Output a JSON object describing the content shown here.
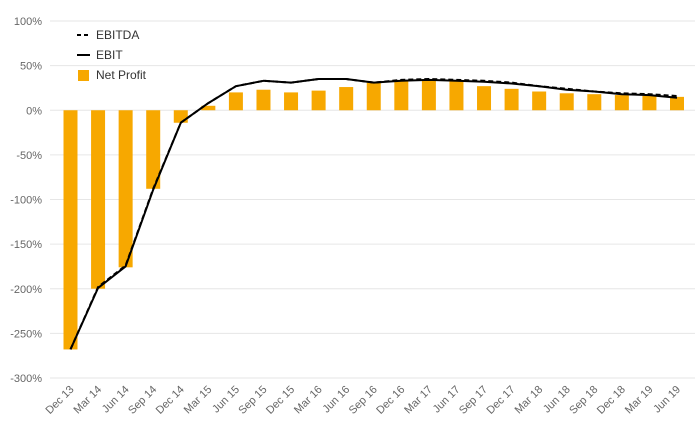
{
  "chart_data": {
    "type": "bar",
    "categories": [
      "Dec 13",
      "Mar 14",
      "Jun 14",
      "Sep 14",
      "Dec 14",
      "Mar 15",
      "Jun 15",
      "Sep 15",
      "Dec 15",
      "Mar 16",
      "Jun 16",
      "Sep 16",
      "Dec 16",
      "Mar 17",
      "Jun 17",
      "Sep 17",
      "Dec 17",
      "Mar 18",
      "Jun 18",
      "Sep 18",
      "Dec 18",
      "Mar 19",
      "Jun 19"
    ],
    "series": [
      {
        "name": "EBITDA",
        "type": "line",
        "style": "dashed",
        "color": "#000000",
        "values": [
          -268,
          -198,
          -174,
          -88,
          -14,
          8,
          27,
          33,
          31,
          35,
          35,
          31,
          34,
          35,
          34,
          33,
          31,
          27,
          24,
          21,
          19,
          18,
          16
        ]
      },
      {
        "name": "EBIT",
        "type": "line",
        "style": "solid",
        "color": "#000000",
        "values": [
          -268,
          -199,
          -175,
          -89,
          -14,
          8,
          27,
          33,
          31,
          35,
          35,
          31,
          33,
          34,
          33,
          32,
          30,
          27,
          23,
          21,
          18,
          17,
          14
        ]
      },
      {
        "name": "Net Profit",
        "type": "bar",
        "color": "#f7a800",
        "values": [
          -268,
          -200,
          -176,
          -88,
          -14,
          5,
          20,
          23,
          20,
          22,
          26,
          31,
          33,
          35,
          33,
          27,
          24,
          21,
          19,
          18,
          17,
          16,
          15
        ]
      }
    ],
    "title": "",
    "xlabel": "",
    "ylabel": "",
    "ylim": [
      -300,
      100
    ],
    "y_ticks": [
      "100%",
      "50%",
      "0%",
      "-50%",
      "-100%",
      "-150%",
      "-200%",
      "-250%",
      "-300%"
    ],
    "y_tick_values": [
      100,
      50,
      0,
      -50,
      -100,
      -150,
      -200,
      -250,
      -300
    ],
    "grid": true,
    "legend_position": "top-left"
  }
}
